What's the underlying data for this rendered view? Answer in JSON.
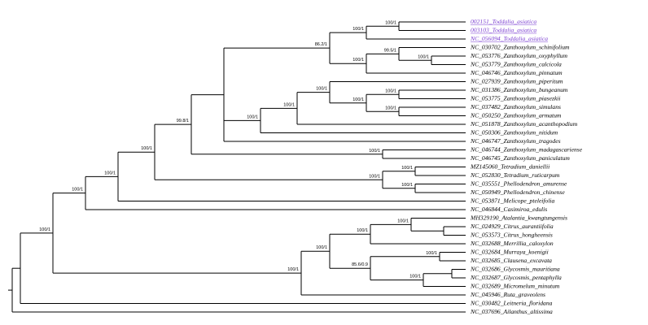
{
  "leaves": [
    {
      "label": "002151_Toddalia_asiatica",
      "color": "#7b3fd1"
    },
    {
      "label": "003103_Toddalia_asiatica",
      "color": "#7b3fd1"
    },
    {
      "label": "NC_056094_Toddalia_asiatica",
      "color": "#7b3fd1"
    },
    {
      "label": "NC_030702_Zanthoxylum_schinifolium"
    },
    {
      "label": "NC_053776_Zanthoxylum_oxyphyllum"
    },
    {
      "label": "NC_053779_Zanthoxylum_calcicola"
    },
    {
      "label": "NC_046746_Zanthoxylum_pinnatum"
    },
    {
      "label": "NC_027939_Zanthoxylum_piperitum"
    },
    {
      "label": "NC_031386_Zanthoxylum_bungeanum"
    },
    {
      "label": "NC_053775_Zanthoxylum_piasezkii"
    },
    {
      "label": "NC_037482_Zanthoxylum_simulans"
    },
    {
      "label": "NC_050250_Zanthoxylum_armatum"
    },
    {
      "label": "NC_051878_Zanthoxylum_acanthopodium"
    },
    {
      "label": "NC_050306_Zanthoxylum_nitidum"
    },
    {
      "label": "NC_046747_Zanthoxylum_tragodes"
    },
    {
      "label": "NC_046744_Zanthoxylum_madagascariense"
    },
    {
      "label": "NC_046745_Zanthoxylum_paniculatum"
    },
    {
      "label": "MZ145060_Tetradium_daniellii"
    },
    {
      "label": "NC_052830_Tetradium_ruticarpum"
    },
    {
      "label": "NC_035551_Phellodendron_amurense"
    },
    {
      "label": "NC_050949_Phellodendron_chinense"
    },
    {
      "label": "NC_053871_Melicope_pteleifolia"
    },
    {
      "label": "NC_046844_Casimiroa_edulis"
    },
    {
      "label": "MH329190_Atalantia_kwangtungensis"
    },
    {
      "label": "NC_024929_Citrus_aurantiifolia"
    },
    {
      "label": "NC_053573_Citrus_hongheensis"
    },
    {
      "label": "NC_032688_Merrillia_caloxylon"
    },
    {
      "label": "NC_032684_Murraya_koenigii"
    },
    {
      "label": "NC_032685_Clausena_excavata"
    },
    {
      "label": "NC_032686_Glycosmis_mauritiana"
    },
    {
      "label": "NC_032687_Glycosmis_pentaphylla"
    },
    {
      "label": "NC_032689_Micromelum_minutum"
    },
    {
      "label": "NC_045946_Ruta_graveolens"
    },
    {
      "label": "NC_030482_Leitneria_floridana"
    },
    {
      "label": "NC_037696_Ailanthus_altissima"
    }
  ],
  "supports": [
    "100/1",
    "100/1",
    "100/1",
    "100/1",
    "99.8/1",
    "86.2/1",
    "100/1",
    "100/1",
    "100/1",
    "99.5/1",
    "100/1",
    "100/1",
    "100/1",
    "100/1",
    "100/1",
    "100/1",
    "100/1",
    "100/1",
    "100/1",
    "100/1",
    "100/1",
    "100/1",
    "100/1",
    "100/1",
    "100/1",
    "85.6/0.9",
    "100/1",
    "100/1"
  ]
}
